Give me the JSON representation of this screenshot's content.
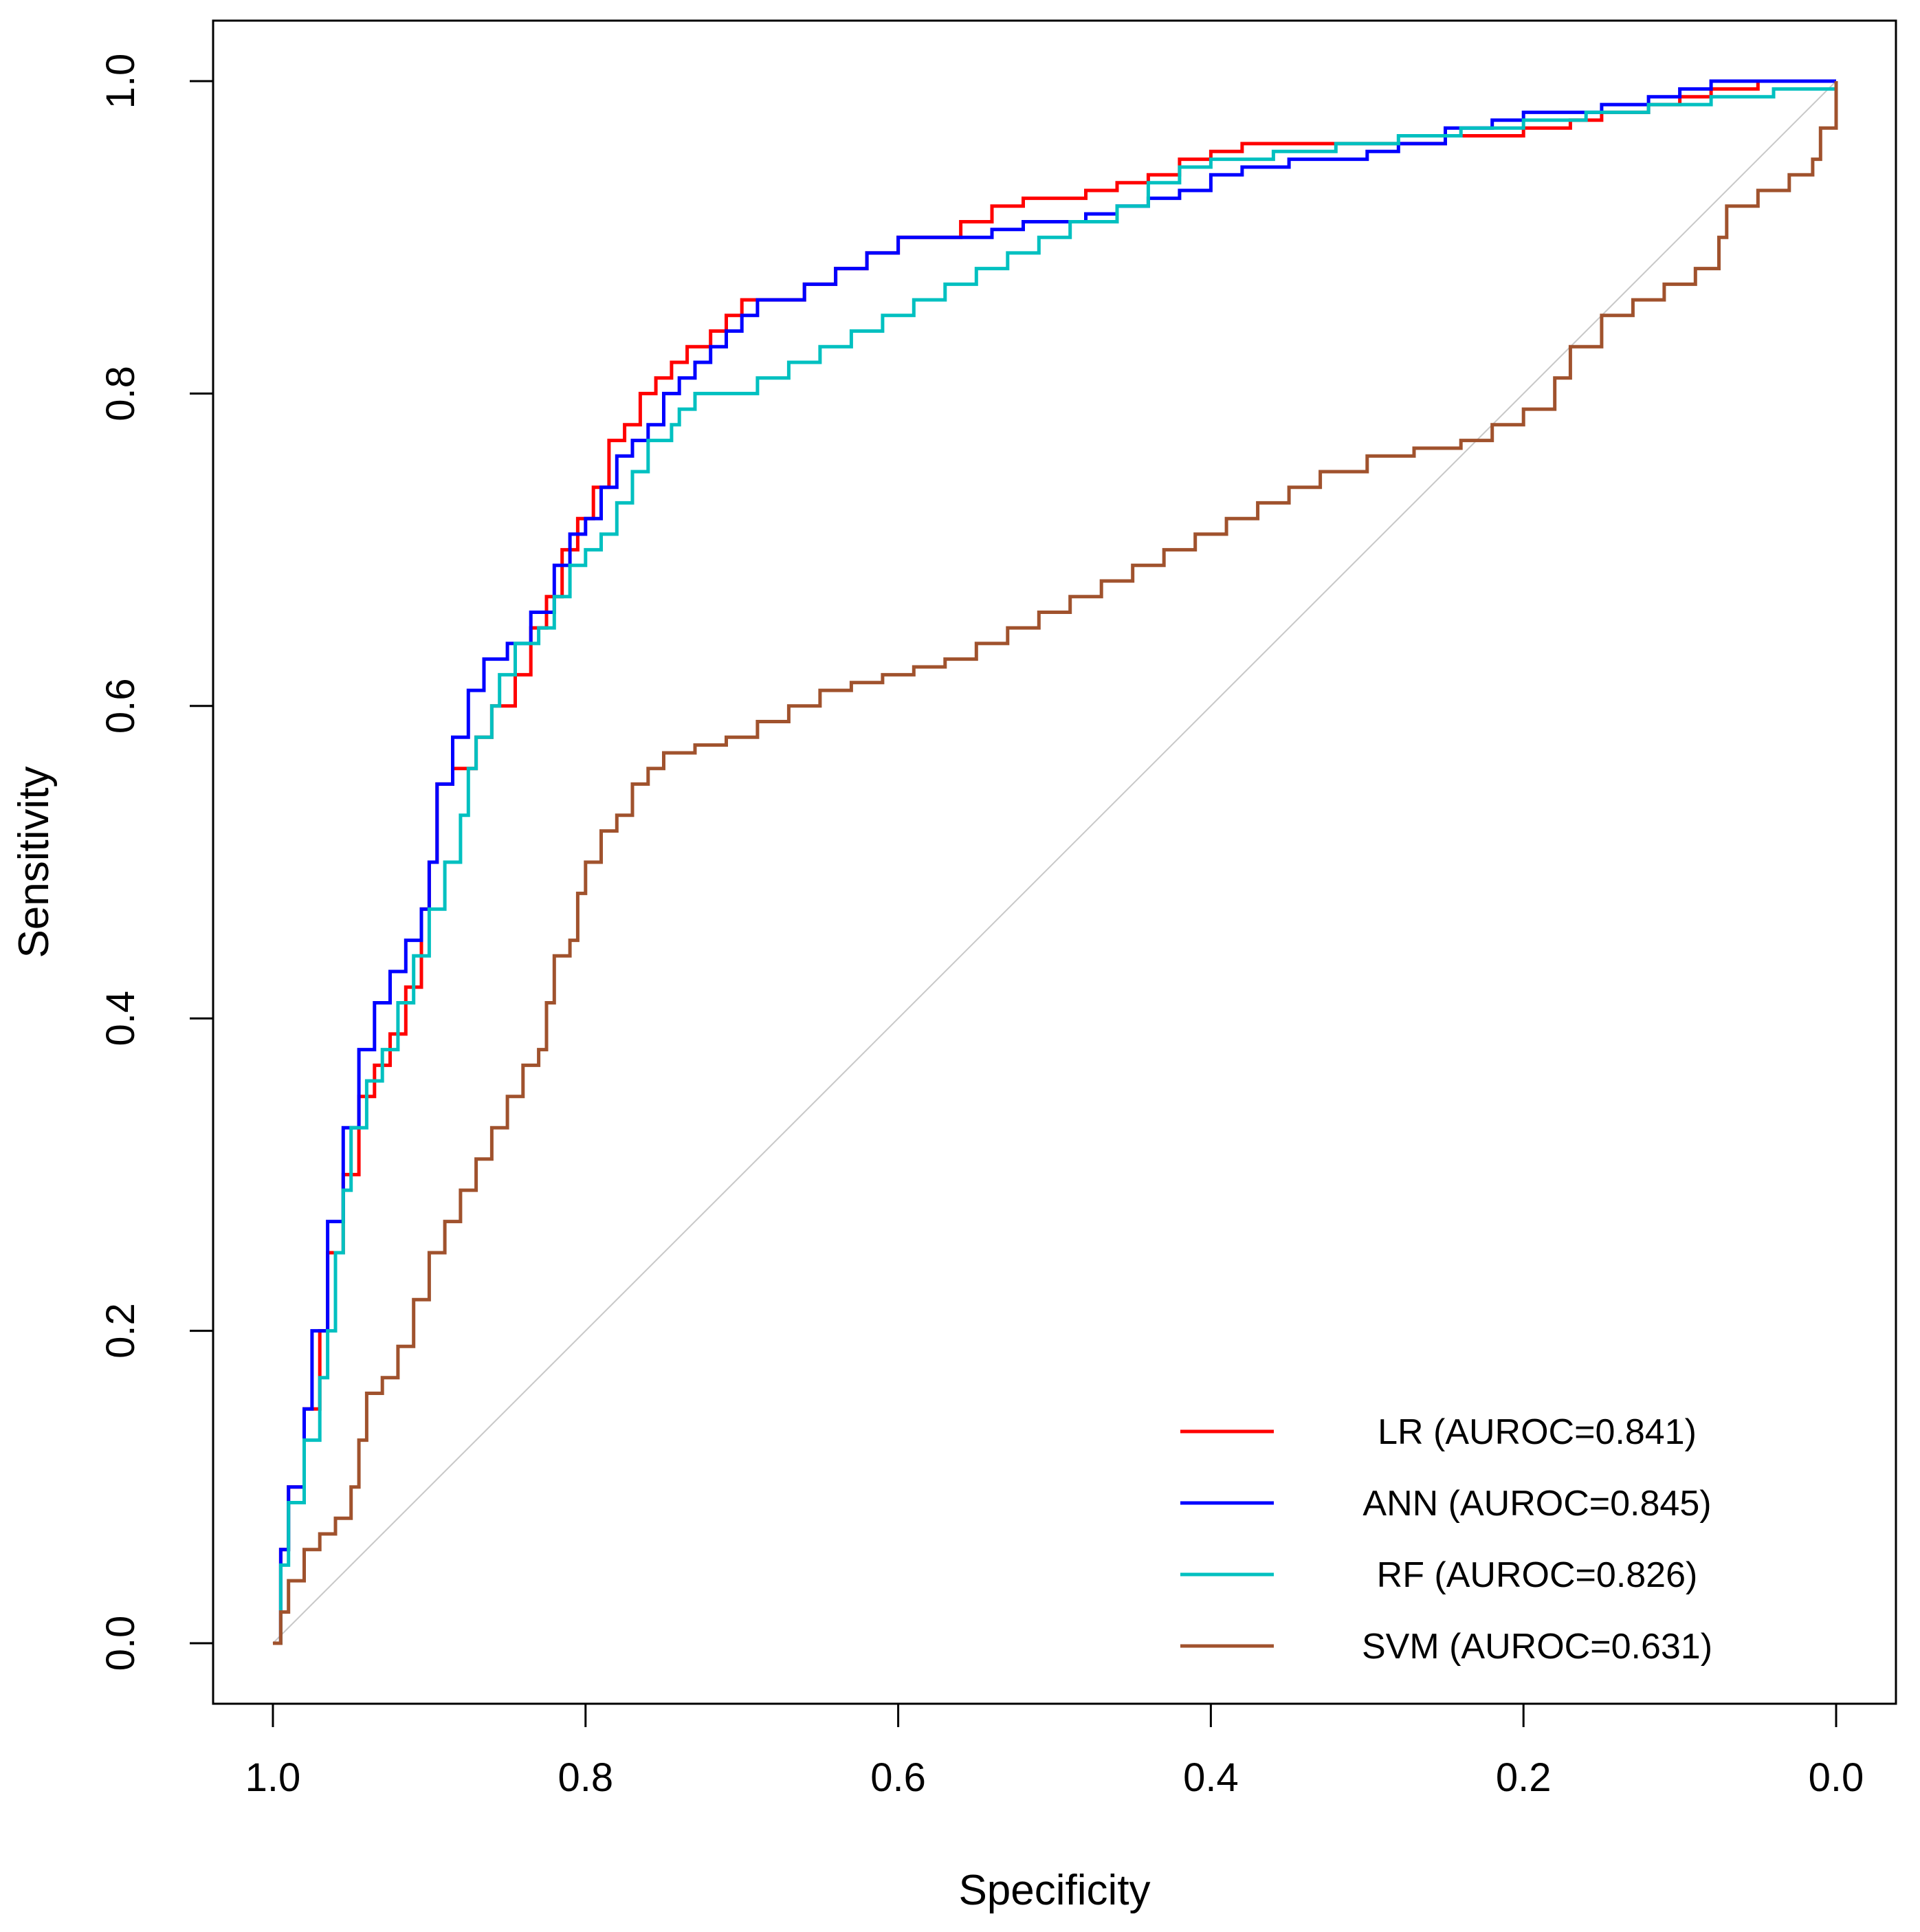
{
  "chart_data": {
    "type": "line",
    "title": "",
    "xlabel": "Specificity",
    "ylabel": "Sensitivity",
    "xlim": [
      1.0,
      0.0
    ],
    "ylim": [
      0.0,
      1.0
    ],
    "x_reversed": true,
    "x_ticks": [
      "1.0",
      "0.8",
      "0.6",
      "0.4",
      "0.2",
      "0.0"
    ],
    "y_ticks": [
      "0.0",
      "0.2",
      "0.4",
      "0.6",
      "0.8",
      "1.0"
    ],
    "grid": false,
    "legend_position": "bottom-right",
    "reference_line": {
      "name": "chance diagonal",
      "points": [
        [
          1.0,
          0.0
        ],
        [
          0.0,
          1.0
        ]
      ],
      "color": "#c8c8c8"
    },
    "series": [
      {
        "name": "LR (AUROC=0.841)",
        "color": "#ff0000",
        "points": [
          [
            1.0,
            0.0
          ],
          [
            0.995,
            0.06
          ],
          [
            0.99,
            0.1
          ],
          [
            0.98,
            0.15
          ],
          [
            0.97,
            0.2
          ],
          [
            0.965,
            0.25
          ],
          [
            0.955,
            0.3
          ],
          [
            0.945,
            0.35
          ],
          [
            0.935,
            0.37
          ],
          [
            0.925,
            0.39
          ],
          [
            0.915,
            0.42
          ],
          [
            0.905,
            0.47
          ],
          [
            0.9,
            0.5
          ],
          [
            0.895,
            0.55
          ],
          [
            0.885,
            0.56
          ],
          [
            0.87,
            0.58
          ],
          [
            0.86,
            0.6
          ],
          [
            0.845,
            0.62
          ],
          [
            0.835,
            0.65
          ],
          [
            0.825,
            0.67
          ],
          [
            0.815,
            0.7
          ],
          [
            0.805,
            0.72
          ],
          [
            0.795,
            0.74
          ],
          [
            0.785,
            0.77
          ],
          [
            0.775,
            0.78
          ],
          [
            0.765,
            0.8
          ],
          [
            0.755,
            0.81
          ],
          [
            0.745,
            0.82
          ],
          [
            0.735,
            0.83
          ],
          [
            0.72,
            0.84
          ],
          [
            0.71,
            0.85
          ],
          [
            0.7,
            0.86
          ],
          [
            0.68,
            0.86
          ],
          [
            0.66,
            0.87
          ],
          [
            0.64,
            0.88
          ],
          [
            0.62,
            0.89
          ],
          [
            0.6,
            0.9
          ],
          [
            0.58,
            0.9
          ],
          [
            0.56,
            0.91
          ],
          [
            0.54,
            0.92
          ],
          [
            0.52,
            0.925
          ],
          [
            0.5,
            0.925
          ],
          [
            0.48,
            0.93
          ],
          [
            0.46,
            0.935
          ],
          [
            0.44,
            0.94
          ],
          [
            0.42,
            0.95
          ],
          [
            0.4,
            0.955
          ],
          [
            0.38,
            0.96
          ],
          [
            0.35,
            0.96
          ],
          [
            0.3,
            0.96
          ],
          [
            0.25,
            0.965
          ],
          [
            0.2,
            0.97
          ],
          [
            0.17,
            0.975
          ],
          [
            0.15,
            0.98
          ],
          [
            0.12,
            0.985
          ],
          [
            0.1,
            0.99
          ],
          [
            0.08,
            0.995
          ],
          [
            0.05,
            1.0
          ],
          [
            0.0,
            1.0
          ]
        ]
      },
      {
        "name": "ANN (AUROC=0.845)",
        "color": "#0000ff",
        "points": [
          [
            1.0,
            0.0
          ],
          [
            0.995,
            0.06
          ],
          [
            0.99,
            0.1
          ],
          [
            0.98,
            0.15
          ],
          [
            0.975,
            0.2
          ],
          [
            0.965,
            0.27
          ],
          [
            0.955,
            0.33
          ],
          [
            0.945,
            0.38
          ],
          [
            0.935,
            0.41
          ],
          [
            0.925,
            0.43
          ],
          [
            0.915,
            0.45
          ],
          [
            0.905,
            0.47
          ],
          [
            0.9,
            0.5
          ],
          [
            0.895,
            0.55
          ],
          [
            0.885,
            0.58
          ],
          [
            0.875,
            0.61
          ],
          [
            0.865,
            0.63
          ],
          [
            0.85,
            0.64
          ],
          [
            0.835,
            0.66
          ],
          [
            0.82,
            0.69
          ],
          [
            0.81,
            0.71
          ],
          [
            0.8,
            0.72
          ],
          [
            0.79,
            0.74
          ],
          [
            0.78,
            0.76
          ],
          [
            0.77,
            0.77
          ],
          [
            0.76,
            0.78
          ],
          [
            0.75,
            0.8
          ],
          [
            0.74,
            0.81
          ],
          [
            0.73,
            0.82
          ],
          [
            0.72,
            0.83
          ],
          [
            0.71,
            0.84
          ],
          [
            0.7,
            0.85
          ],
          [
            0.69,
            0.86
          ],
          [
            0.66,
            0.87
          ],
          [
            0.64,
            0.88
          ],
          [
            0.62,
            0.89
          ],
          [
            0.6,
            0.9
          ],
          [
            0.58,
            0.9
          ],
          [
            0.56,
            0.9
          ],
          [
            0.54,
            0.905
          ],
          [
            0.52,
            0.91
          ],
          [
            0.5,
            0.91
          ],
          [
            0.48,
            0.915
          ],
          [
            0.46,
            0.92
          ],
          [
            0.44,
            0.925
          ],
          [
            0.42,
            0.93
          ],
          [
            0.4,
            0.94
          ],
          [
            0.38,
            0.945
          ],
          [
            0.35,
            0.95
          ],
          [
            0.3,
            0.955
          ],
          [
            0.28,
            0.96
          ],
          [
            0.25,
            0.97
          ],
          [
            0.22,
            0.975
          ],
          [
            0.2,
            0.98
          ],
          [
            0.15,
            0.985
          ],
          [
            0.12,
            0.99
          ],
          [
            0.1,
            0.995
          ],
          [
            0.08,
            1.0
          ],
          [
            0.04,
            1.0
          ],
          [
            0.0,
            1.0
          ]
        ]
      },
      {
        "name": "RF (AUROC=0.826)",
        "color": "#00c0c0",
        "points": [
          [
            1.0,
            0.0
          ],
          [
            0.995,
            0.05
          ],
          [
            0.99,
            0.09
          ],
          [
            0.98,
            0.13
          ],
          [
            0.97,
            0.17
          ],
          [
            0.965,
            0.2
          ],
          [
            0.96,
            0.25
          ],
          [
            0.955,
            0.29
          ],
          [
            0.95,
            0.33
          ],
          [
            0.94,
            0.36
          ],
          [
            0.93,
            0.38
          ],
          [
            0.92,
            0.41
          ],
          [
            0.91,
            0.44
          ],
          [
            0.9,
            0.47
          ],
          [
            0.89,
            0.5
          ],
          [
            0.88,
            0.53
          ],
          [
            0.875,
            0.56
          ],
          [
            0.87,
            0.58
          ],
          [
            0.86,
            0.6
          ],
          [
            0.855,
            0.62
          ],
          [
            0.845,
            0.64
          ],
          [
            0.83,
            0.65
          ],
          [
            0.82,
            0.67
          ],
          [
            0.81,
            0.69
          ],
          [
            0.8,
            0.7
          ],
          [
            0.79,
            0.71
          ],
          [
            0.78,
            0.73
          ],
          [
            0.77,
            0.75
          ],
          [
            0.76,
            0.77
          ],
          [
            0.75,
            0.77
          ],
          [
            0.745,
            0.78
          ],
          [
            0.74,
            0.79
          ],
          [
            0.73,
            0.8
          ],
          [
            0.71,
            0.8
          ],
          [
            0.69,
            0.81
          ],
          [
            0.67,
            0.82
          ],
          [
            0.65,
            0.83
          ],
          [
            0.63,
            0.84
          ],
          [
            0.61,
            0.85
          ],
          [
            0.59,
            0.86
          ],
          [
            0.57,
            0.87
          ],
          [
            0.55,
            0.88
          ],
          [
            0.53,
            0.89
          ],
          [
            0.51,
            0.9
          ],
          [
            0.49,
            0.91
          ],
          [
            0.46,
            0.92
          ],
          [
            0.44,
            0.935
          ],
          [
            0.42,
            0.945
          ],
          [
            0.4,
            0.95
          ],
          [
            0.36,
            0.955
          ],
          [
            0.32,
            0.96
          ],
          [
            0.28,
            0.965
          ],
          [
            0.24,
            0.97
          ],
          [
            0.2,
            0.975
          ],
          [
            0.16,
            0.98
          ],
          [
            0.12,
            0.985
          ],
          [
            0.08,
            0.99
          ],
          [
            0.04,
            0.995
          ],
          [
            0.0,
            1.0
          ]
        ]
      },
      {
        "name": "SVM (AUROC=0.631)",
        "color": "#a0522d",
        "points": [
          [
            1.0,
            0.0
          ],
          [
            0.995,
            0.02
          ],
          [
            0.99,
            0.04
          ],
          [
            0.98,
            0.06
          ],
          [
            0.97,
            0.07
          ],
          [
            0.96,
            0.08
          ],
          [
            0.95,
            0.1
          ],
          [
            0.945,
            0.13
          ],
          [
            0.94,
            0.16
          ],
          [
            0.93,
            0.17
          ],
          [
            0.92,
            0.19
          ],
          [
            0.91,
            0.22
          ],
          [
            0.9,
            0.25
          ],
          [
            0.89,
            0.27
          ],
          [
            0.88,
            0.29
          ],
          [
            0.87,
            0.31
          ],
          [
            0.86,
            0.33
          ],
          [
            0.85,
            0.35
          ],
          [
            0.84,
            0.37
          ],
          [
            0.83,
            0.38
          ],
          [
            0.825,
            0.41
          ],
          [
            0.82,
            0.44
          ],
          [
            0.81,
            0.45
          ],
          [
            0.805,
            0.48
          ],
          [
            0.8,
            0.5
          ],
          [
            0.79,
            0.52
          ],
          [
            0.78,
            0.53
          ],
          [
            0.77,
            0.55
          ],
          [
            0.76,
            0.56
          ],
          [
            0.75,
            0.57
          ],
          [
            0.73,
            0.575
          ],
          [
            0.71,
            0.58
          ],
          [
            0.69,
            0.59
          ],
          [
            0.67,
            0.6
          ],
          [
            0.65,
            0.61
          ],
          [
            0.63,
            0.615
          ],
          [
            0.61,
            0.62
          ],
          [
            0.59,
            0.625
          ],
          [
            0.57,
            0.63
          ],
          [
            0.55,
            0.64
          ],
          [
            0.53,
            0.65
          ],
          [
            0.51,
            0.66
          ],
          [
            0.49,
            0.67
          ],
          [
            0.47,
            0.68
          ],
          [
            0.45,
            0.69
          ],
          [
            0.43,
            0.7
          ],
          [
            0.41,
            0.71
          ],
          [
            0.39,
            0.72
          ],
          [
            0.37,
            0.73
          ],
          [
            0.35,
            0.74
          ],
          [
            0.33,
            0.75
          ],
          [
            0.3,
            0.76
          ],
          [
            0.27,
            0.765
          ],
          [
            0.24,
            0.77
          ],
          [
            0.22,
            0.78
          ],
          [
            0.2,
            0.79
          ],
          [
            0.18,
            0.81
          ],
          [
            0.17,
            0.83
          ],
          [
            0.15,
            0.85
          ],
          [
            0.13,
            0.86
          ],
          [
            0.11,
            0.87
          ],
          [
            0.09,
            0.88
          ],
          [
            0.075,
            0.9
          ],
          [
            0.07,
            0.92
          ],
          [
            0.05,
            0.93
          ],
          [
            0.03,
            0.94
          ],
          [
            0.015,
            0.95
          ],
          [
            0.01,
            0.97
          ],
          [
            0.0,
            1.0
          ]
        ]
      }
    ]
  }
}
